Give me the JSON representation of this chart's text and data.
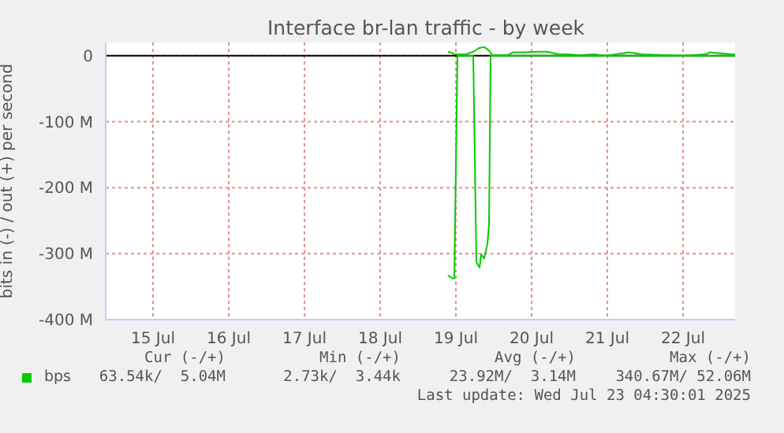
{
  "chart_data": {
    "type": "line",
    "title": "Interface br-lan traffic - by week",
    "ylabel": "bits in (-) / out (+) per second",
    "xlim": [
      "2025-07-14T21:00",
      "2025-07-23T04:30"
    ],
    "xticks": [
      {
        "value": "2025-07-15T12:00",
        "label": "15 Jul"
      },
      {
        "value": "2025-07-16T12:00",
        "label": "16 Jul"
      },
      {
        "value": "2025-07-17T12:00",
        "label": "17 Jul"
      },
      {
        "value": "2025-07-18T12:00",
        "label": "18 Jul"
      },
      {
        "value": "2025-07-19T12:00",
        "label": "19 Jul"
      },
      {
        "value": "2025-07-20T12:00",
        "label": "20 Jul"
      },
      {
        "value": "2025-07-21T12:00",
        "label": "21 Jul"
      },
      {
        "value": "2025-07-22T12:00",
        "label": "22 Jul"
      }
    ],
    "ylim": [
      -400,
      20
    ],
    "yticks": [
      {
        "value": -400,
        "label": "-400 M"
      },
      {
        "value": -300,
        "label": "-300 M"
      },
      {
        "value": -200,
        "label": "-200 M"
      },
      {
        "value": -100,
        "label": "-100 M"
      },
      0
    ],
    "grid": true,
    "legend": "bottom left",
    "marker": "none",
    "ref_lines": [
      {
        "axis": "y",
        "value": 0,
        "color": "#000000"
      }
    ],
    "series": [
      {
        "name": "bps",
        "color": "#00cc00",
        "x": [
          "2025-07-19T09:30",
          "2025-07-19T11:00",
          "2025-07-19T11:30",
          "2025-07-19T12:30",
          "2025-07-19T17:30",
          "2025-07-19T18:30",
          "2025-07-19T19:30",
          "2025-07-19T20:00",
          "2025-07-19T21:00",
          "2025-07-19T22:00",
          "2025-07-19T22:30",
          "2025-07-19T23:00",
          "2025-07-23T04:30"
        ],
        "values": [
          -333,
          -338,
          -337,
          0,
          0,
          -313,
          -321,
          -301,
          -307,
          -285,
          -256,
          0,
          0
        ]
      },
      {
        "color": "#00cc00",
        "x": [
          "2025-07-19T09:30",
          "2025-07-19T12:00",
          "2025-07-19T15:00",
          "2025-07-19T17:30",
          "2025-07-19T19:30",
          "2025-07-19T21:00",
          "2025-07-19T22:30",
          "2025-07-19T23:30",
          "2025-07-20T04:30",
          "2025-07-20T06:00",
          "2025-07-20T09:30",
          "2025-07-20T13:30",
          "2025-07-20T17:00",
          "2025-07-20T20:30",
          "2025-07-20T23:30",
          "2025-07-21T03:00",
          "2025-07-21T08:00",
          "2025-07-21T11:30",
          "2025-07-21T19:00",
          "2025-07-21T23:00",
          "2025-07-22T06:30",
          "2025-07-22T12:30",
          "2025-07-22T19:00",
          "2025-07-22T20:30",
          "2025-07-23T03:30",
          "2025-07-23T04:30"
        ],
        "values": [
          6,
          2,
          2,
          6,
          12,
          13,
          8,
          1,
          1,
          5,
          5,
          6,
          6,
          2,
          2,
          1,
          2,
          0,
          5,
          2,
          1,
          0,
          2,
          5,
          2,
          2
        ]
      }
    ],
    "annotations": [
      "Cur (-/+)",
      "Min (-/+)",
      "Avg (-/+)",
      "Max (-/+)",
      "63.54k/  5.04M",
      "2.73k/  3.44k",
      "23.92M/  3.14M",
      "340.67M/ 52.06M",
      "Last update: Wed Jul 23 04:30:01 2025"
    ]
  }
}
